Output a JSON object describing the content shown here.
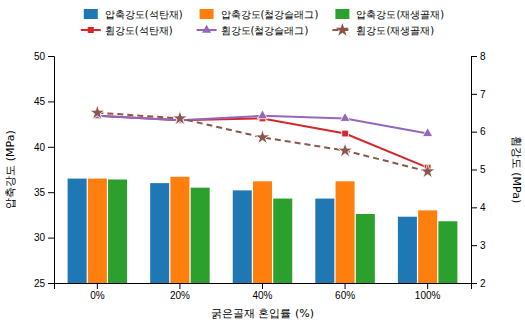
{
  "chart_data": {
    "type": "bar",
    "categories": [
      "0%",
      "20%",
      "40%",
      "60%",
      "100%"
    ],
    "x_label": "굵은골재 혼입률 (%)",
    "y_label": "압축강도 (MPa)",
    "y2_label": "휨강도 (MPa)",
    "ylim": [
      25,
      50
    ],
    "yticks": [
      25,
      30,
      35,
      40,
      45,
      50
    ],
    "y2lim": [
      2,
      8
    ],
    "y2ticks": [
      2,
      3,
      4,
      5,
      6,
      7,
      8
    ],
    "grid": false,
    "legend": "top",
    "series": [
      {
        "name": "압축강도(석탄재)",
        "type": "bar",
        "values": [
          36.5,
          36.0,
          35.2,
          34.3,
          32.3
        ]
      },
      {
        "name": "압축강도(철강슬래그)",
        "type": "bar",
        "values": [
          36.5,
          36.7,
          36.2,
          36.2,
          33.0
        ]
      },
      {
        "name": "압축강도(재생골재)",
        "type": "bar",
        "values": [
          36.4,
          35.5,
          34.3,
          32.6,
          31.8
        ]
      },
      {
        "name": "휨강도(석탄재)",
        "type": "line",
        "axis": "y2",
        "marker": "square",
        "line_style": "solid",
        "values": [
          6.42,
          6.3,
          6.35,
          5.95,
          5.05
        ]
      },
      {
        "name": "휨강도(철강슬래그)",
        "type": "line",
        "axis": "y2",
        "marker": "triangle",
        "line_style": "solid",
        "values": [
          6.42,
          6.3,
          6.42,
          6.35,
          5.95
        ]
      },
      {
        "name": "휨강도(재생골재)",
        "type": "line",
        "axis": "y2",
        "marker": "star",
        "line_style": "dashed",
        "values": [
          6.5,
          6.35,
          5.85,
          5.5,
          4.95
        ]
      }
    ]
  }
}
